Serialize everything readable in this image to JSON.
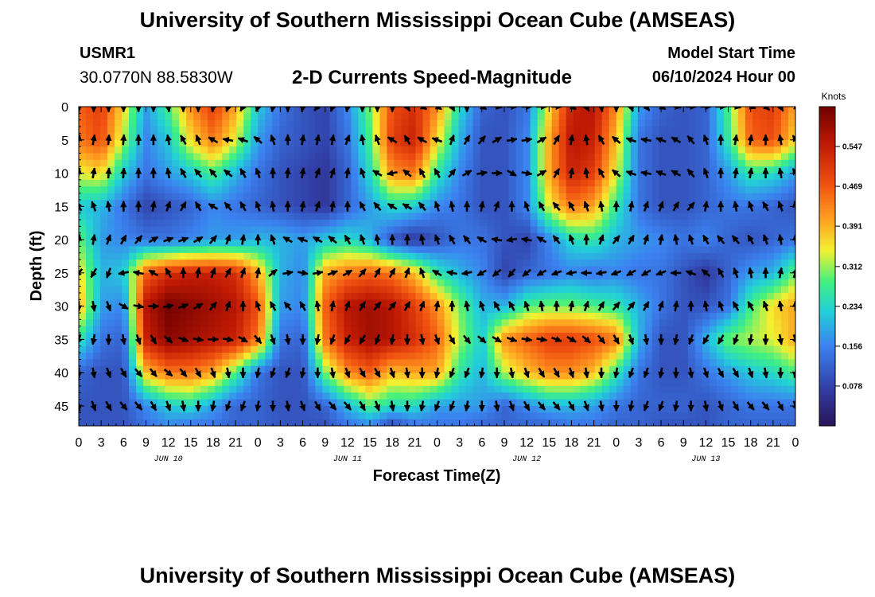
{
  "page": {
    "title_top": "University of Southern Mississippi Ocean Cube (AMSEAS)",
    "title_bottom": "University of Southern Mississippi Ocean Cube (AMSEAS)",
    "station": "USMR1",
    "coords": "30.0770N  88.5830W",
    "model_start_label": "Model Start Time",
    "model_start_value": "06/10/2024 Hour 00"
  },
  "chart_data": {
    "type": "heatmap",
    "title": "2-D Currents Speed-Magnitude",
    "xlabel": "Forecast Time(Z)",
    "ylabel": "Depth (ft)",
    "colorbar_title": "Knots",
    "colorbar_ticks": [
      "0.078",
      "0.156",
      "0.234",
      "0.312",
      "0.391",
      "0.469",
      "0.547"
    ],
    "colorbar_range": [
      0.0,
      0.625
    ],
    "x_range_hours": [
      0,
      96
    ],
    "x_tick_labels": [
      "0",
      "3",
      "6",
      "9",
      "12",
      "15",
      "18",
      "21",
      "0",
      "3",
      "6",
      "9",
      "12",
      "15",
      "18",
      "21",
      "0",
      "3",
      "6",
      "9",
      "12",
      "15",
      "18",
      "21",
      "0",
      "3",
      "6",
      "9",
      "12",
      "15",
      "18",
      "21",
      "0"
    ],
    "date_labels": [
      {
        "label": "JUN 10",
        "hour": 12
      },
      {
        "label": "JUN 11",
        "hour": 36
      },
      {
        "label": "JUN 12",
        "hour": 60
      },
      {
        "label": "JUN 13",
        "hour": 84
      }
    ],
    "depth_range_ft": [
      0,
      48
    ],
    "y_ticks": [
      0,
      5,
      10,
      15,
      20,
      25,
      30,
      35,
      40,
      45
    ],
    "cell_hours": [
      0,
      3,
      6,
      9,
      12,
      15,
      18,
      21,
      24,
      27,
      30,
      33,
      36,
      39,
      42,
      45,
      48,
      51,
      54,
      57,
      60,
      63,
      66,
      69,
      72,
      75,
      78,
      81,
      84,
      87,
      90,
      93,
      96
    ],
    "cell_depths": [
      0,
      5,
      10,
      15,
      20,
      25,
      30,
      35,
      40,
      45,
      48
    ],
    "speed_knots": [
      [
        0.46,
        0.5,
        0.36,
        0.18,
        0.28,
        0.42,
        0.5,
        0.4,
        0.22,
        0.14,
        0.1,
        0.08,
        0.16,
        0.3,
        0.48,
        0.52,
        0.42,
        0.24,
        0.12,
        0.1,
        0.14,
        0.36,
        0.54,
        0.56,
        0.42,
        0.18,
        0.12,
        0.1,
        0.12,
        0.28,
        0.48,
        0.5,
        0.4
      ],
      [
        0.44,
        0.48,
        0.32,
        0.16,
        0.22,
        0.36,
        0.44,
        0.34,
        0.18,
        0.12,
        0.1,
        0.08,
        0.14,
        0.28,
        0.5,
        0.54,
        0.36,
        0.2,
        0.1,
        0.1,
        0.16,
        0.4,
        0.56,
        0.54,
        0.38,
        0.14,
        0.1,
        0.1,
        0.12,
        0.26,
        0.46,
        0.48,
        0.36
      ],
      [
        0.34,
        0.36,
        0.22,
        0.14,
        0.18,
        0.22,
        0.28,
        0.2,
        0.14,
        0.1,
        0.08,
        0.06,
        0.12,
        0.24,
        0.42,
        0.44,
        0.26,
        0.16,
        0.1,
        0.1,
        0.16,
        0.4,
        0.54,
        0.5,
        0.34,
        0.14,
        0.1,
        0.1,
        0.12,
        0.18,
        0.26,
        0.24,
        0.18
      ],
      [
        0.22,
        0.2,
        0.14,
        0.08,
        0.1,
        0.12,
        0.16,
        0.14,
        0.12,
        0.1,
        0.08,
        0.06,
        0.12,
        0.18,
        0.24,
        0.22,
        0.16,
        0.14,
        0.1,
        0.1,
        0.16,
        0.34,
        0.44,
        0.4,
        0.26,
        0.14,
        0.1,
        0.1,
        0.12,
        0.14,
        0.14,
        0.12,
        0.1
      ],
      [
        0.3,
        0.18,
        0.16,
        0.14,
        0.14,
        0.16,
        0.18,
        0.18,
        0.2,
        0.2,
        0.18,
        0.22,
        0.24,
        0.2,
        0.1,
        0.06,
        0.1,
        0.14,
        0.14,
        0.1,
        0.08,
        0.16,
        0.24,
        0.26,
        0.2,
        0.18,
        0.16,
        0.14,
        0.16,
        0.12,
        0.1,
        0.12,
        0.14
      ],
      [
        0.36,
        0.2,
        0.22,
        0.46,
        0.52,
        0.54,
        0.54,
        0.52,
        0.4,
        0.2,
        0.16,
        0.4,
        0.44,
        0.46,
        0.44,
        0.38,
        0.26,
        0.2,
        0.16,
        0.08,
        0.12,
        0.14,
        0.16,
        0.14,
        0.16,
        0.14,
        0.14,
        0.1,
        0.06,
        0.12,
        0.18,
        0.2,
        0.3
      ],
      [
        0.4,
        0.18,
        0.16,
        0.56,
        0.62,
        0.6,
        0.58,
        0.56,
        0.48,
        0.18,
        0.16,
        0.46,
        0.56,
        0.58,
        0.56,
        0.5,
        0.42,
        0.3,
        0.2,
        0.2,
        0.28,
        0.3,
        0.3,
        0.28,
        0.26,
        0.2,
        0.14,
        0.1,
        0.1,
        0.14,
        0.28,
        0.36,
        0.4
      ],
      [
        0.26,
        0.14,
        0.12,
        0.54,
        0.6,
        0.58,
        0.56,
        0.54,
        0.44,
        0.14,
        0.12,
        0.44,
        0.54,
        0.58,
        0.56,
        0.52,
        0.46,
        0.32,
        0.22,
        0.42,
        0.46,
        0.5,
        0.5,
        0.48,
        0.44,
        0.2,
        0.1,
        0.1,
        0.2,
        0.3,
        0.32,
        0.34,
        0.4
      ],
      [
        0.12,
        0.1,
        0.1,
        0.38,
        0.44,
        0.44,
        0.4,
        0.28,
        0.14,
        0.1,
        0.1,
        0.3,
        0.42,
        0.46,
        0.38,
        0.4,
        0.4,
        0.26,
        0.2,
        0.32,
        0.38,
        0.42,
        0.42,
        0.38,
        0.26,
        0.14,
        0.1,
        0.1,
        0.14,
        0.18,
        0.22,
        0.24,
        0.28
      ],
      [
        0.1,
        0.1,
        0.1,
        0.16,
        0.22,
        0.24,
        0.18,
        0.12,
        0.12,
        0.1,
        0.1,
        0.12,
        0.2,
        0.28,
        0.24,
        0.24,
        0.18,
        0.18,
        0.18,
        0.12,
        0.16,
        0.2,
        0.2,
        0.18,
        0.14,
        0.12,
        0.12,
        0.12,
        0.1,
        0.12,
        0.14,
        0.14,
        0.14
      ],
      [
        0.1,
        0.1,
        0.1,
        0.14,
        0.16,
        0.14,
        0.14,
        0.12,
        0.12,
        0.1,
        0.1,
        0.1,
        0.14,
        0.16,
        0.08,
        0.14,
        0.14,
        0.14,
        0.12,
        0.12,
        0.12,
        0.12,
        0.14,
        0.14,
        0.12,
        0.12,
        0.1,
        0.1,
        0.1,
        0.12,
        0.12,
        0.12,
        0.12
      ]
    ],
    "arrow_depths": [
      0,
      5,
      10,
      15,
      20,
      25,
      30,
      35,
      40,
      45
    ],
    "arrow_hours": [
      0,
      2,
      4,
      6,
      8,
      10,
      12,
      14,
      16,
      18,
      20,
      22,
      24,
      26,
      28,
      30,
      32,
      34,
      36,
      38,
      40,
      42,
      44,
      46,
      48,
      50,
      52,
      54,
      56,
      58,
      60,
      62,
      64,
      66,
      68,
      70,
      72,
      74,
      76,
      78,
      80,
      82,
      84,
      86,
      88,
      90,
      92,
      94,
      96
    ],
    "arrow_dir_deg": [
      [
        180,
        180,
        180,
        180,
        180,
        180,
        170,
        180,
        180,
        190,
        200,
        210,
        200,
        190,
        180,
        190,
        220,
        200,
        190,
        180,
        180,
        180,
        150,
        120,
        120,
        150,
        180,
        120,
        100,
        90,
        90,
        90,
        90,
        120,
        150,
        170,
        180,
        160,
        140,
        120,
        100,
        90,
        90,
        90,
        100,
        110,
        130,
        150,
        120
      ],
      [
        10,
        10,
        5,
        5,
        0,
        0,
        350,
        330,
        340,
        300,
        280,
        290,
        310,
        340,
        0,
        10,
        10,
        10,
        20,
        350,
        340,
        300,
        330,
        300,
        290,
        20,
        30,
        40,
        60,
        80,
        80,
        60,
        30,
        10,
        350,
        330,
        310,
        290,
        280,
        290,
        300,
        320,
        340,
        0,
        10,
        10,
        0,
        350,
        330
      ],
      [
        10,
        10,
        5,
        5,
        0,
        0,
        350,
        330,
        320,
        320,
        310,
        330,
        340,
        0,
        5,
        10,
        20,
        20,
        10,
        340,
        300,
        260,
        310,
        330,
        330,
        40,
        60,
        80,
        90,
        120,
        100,
        60,
        30,
        10,
        350,
        330,
        310,
        290,
        280,
        290,
        300,
        320,
        340,
        0,
        10,
        10,
        0,
        350,
        330
      ],
      [
        330,
        340,
        350,
        0,
        0,
        10,
        20,
        30,
        330,
        300,
        320,
        330,
        340,
        350,
        0,
        10,
        20,
        10,
        0,
        330,
        320,
        300,
        300,
        320,
        340,
        350,
        0,
        10,
        20,
        0,
        340,
        330,
        320,
        330,
        340,
        350,
        0,
        10,
        20,
        20,
        30,
        40,
        10,
        0,
        350,
        340,
        330,
        340,
        350
      ],
      [
        10,
        10,
        20,
        30,
        40,
        60,
        70,
        70,
        60,
        40,
        20,
        10,
        0,
        340,
        300,
        290,
        300,
        310,
        330,
        340,
        350,
        0,
        0,
        350,
        340,
        330,
        320,
        300,
        280,
        260,
        280,
        300,
        320,
        340,
        0,
        20,
        40,
        30,
        20,
        10,
        350,
        340,
        330,
        320,
        320,
        330,
        340,
        350,
        0
      ],
      [
        220,
        210,
        200,
        260,
        280,
        300,
        330,
        0,
        10,
        20,
        30,
        20,
        10,
        50,
        80,
        100,
        80,
        70,
        60,
        40,
        30,
        30,
        20,
        340,
        300,
        280,
        260,
        240,
        230,
        220,
        230,
        240,
        250,
        260,
        270,
        260,
        250,
        240,
        240,
        250,
        270,
        290,
        310,
        330,
        340,
        350,
        0,
        10,
        20
      ],
      [
        180,
        170,
        160,
        120,
        100,
        90,
        80,
        70,
        60,
        40,
        20,
        0,
        340,
        330,
        320,
        330,
        350,
        10,
        20,
        30,
        40,
        40,
        30,
        20,
        10,
        0,
        350,
        340,
        330,
        330,
        340,
        350,
        0,
        10,
        20,
        30,
        40,
        40,
        30,
        20,
        10,
        0,
        350,
        340,
        330,
        330,
        340,
        350,
        0
      ],
      [
        200,
        190,
        180,
        170,
        160,
        150,
        130,
        110,
        100,
        90,
        100,
        120,
        140,
        160,
        170,
        180,
        190,
        200,
        210,
        210,
        200,
        190,
        180,
        170,
        160,
        150,
        140,
        130,
        120,
        110,
        100,
        100,
        110,
        120,
        130,
        140,
        150,
        160,
        170,
        180,
        190,
        200,
        210,
        210,
        200,
        190,
        180,
        170,
        160
      ],
      [
        180,
        170,
        160,
        150,
        140,
        140,
        130,
        140,
        150,
        160,
        170,
        180,
        190,
        200,
        200,
        190,
        180,
        170,
        160,
        150,
        150,
        160,
        170,
        180,
        190,
        200,
        200,
        190,
        180,
        170,
        160,
        150,
        150,
        160,
        170,
        180,
        190,
        200,
        200,
        190,
        180,
        170,
        160,
        150,
        150,
        160,
        170,
        180,
        190
      ],
      [
        170,
        160,
        150,
        140,
        140,
        150,
        160,
        170,
        180,
        190,
        200,
        200,
        190,
        180,
        170,
        160,
        150,
        140,
        140,
        150,
        160,
        170,
        180,
        190,
        200,
        200,
        190,
        180,
        170,
        160,
        150,
        140,
        140,
        150,
        160,
        170,
        180,
        190,
        200,
        200,
        190,
        180,
        170,
        160,
        150,
        140,
        140,
        150,
        160
      ]
    ]
  }
}
